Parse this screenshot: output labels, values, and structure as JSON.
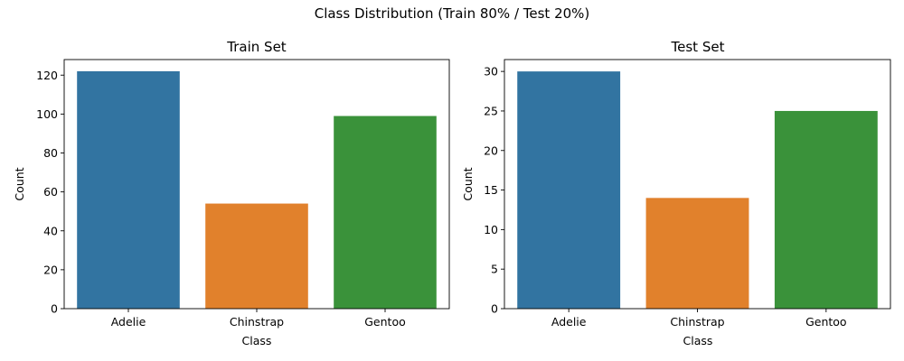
{
  "figure": {
    "suptitle": "Class Distribution (Train 80% / Test 20%)"
  },
  "chart_data": [
    {
      "type": "bar",
      "title": "Train Set",
      "xlabel": "Class",
      "ylabel": "Count",
      "categories": [
        "Adelie",
        "Chinstrap",
        "Gentoo"
      ],
      "values": [
        122,
        54,
        99
      ],
      "colors": [
        "#3274a1",
        "#e1812c",
        "#3a923a"
      ],
      "ylim": [
        0,
        128
      ],
      "yticks": [
        0,
        20,
        40,
        60,
        80,
        100,
        120
      ],
      "grid": false
    },
    {
      "type": "bar",
      "title": "Test Set",
      "xlabel": "Class",
      "ylabel": "Count",
      "categories": [
        "Adelie",
        "Chinstrap",
        "Gentoo"
      ],
      "values": [
        30,
        14,
        25
      ],
      "colors": [
        "#3274a1",
        "#e1812c",
        "#3a923a"
      ],
      "ylim": [
        0,
        31.5
      ],
      "yticks": [
        0,
        5,
        10,
        15,
        20,
        25,
        30
      ],
      "grid": false
    }
  ]
}
